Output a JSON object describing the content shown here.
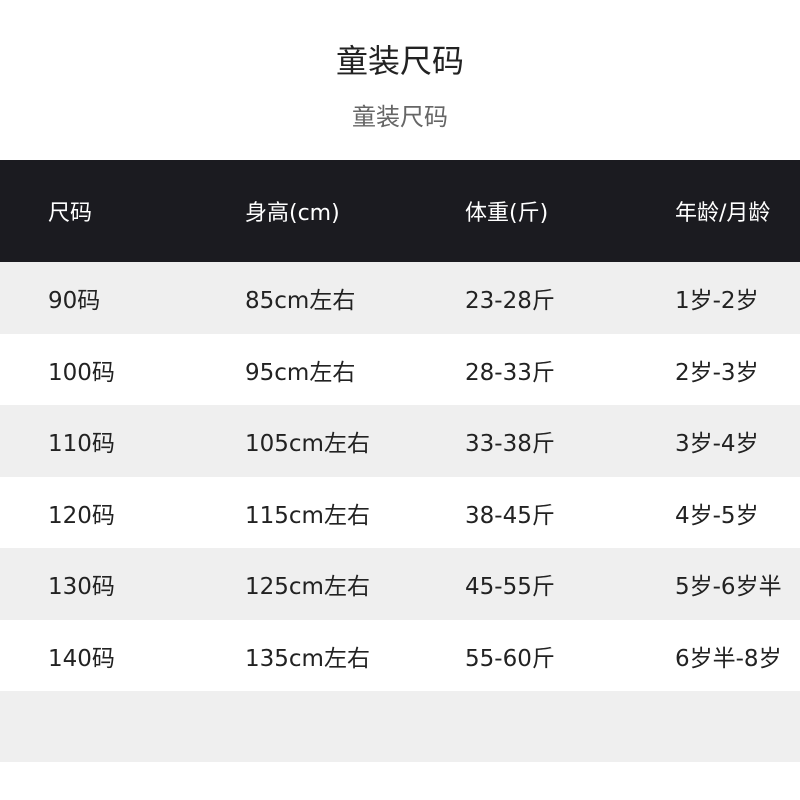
{
  "title": "童装尺码",
  "subtitle": "童装尺码",
  "table": {
    "headers": [
      "尺码",
      "身高(cm)",
      "体重(斤)",
      "年龄/月龄"
    ],
    "rows": [
      [
        "90码",
        "85cm左右",
        "23-28斤",
        "1岁-2岁"
      ],
      [
        "100码",
        "95cm左右",
        "28-33斤",
        "2岁-3岁"
      ],
      [
        "110码",
        "105cm左右",
        "33-38斤",
        "3岁-4岁"
      ],
      [
        "120码",
        "115cm左右",
        "38-45斤",
        "4岁-5岁"
      ],
      [
        "130码",
        "125cm左右",
        "45-55斤",
        "5岁-6岁半"
      ],
      [
        "140码",
        "135cm左右",
        "55-60斤",
        "6岁半-8岁"
      ]
    ]
  },
  "colors": {
    "header_bg": "#1b1b20",
    "stripe": "#efefef"
  }
}
